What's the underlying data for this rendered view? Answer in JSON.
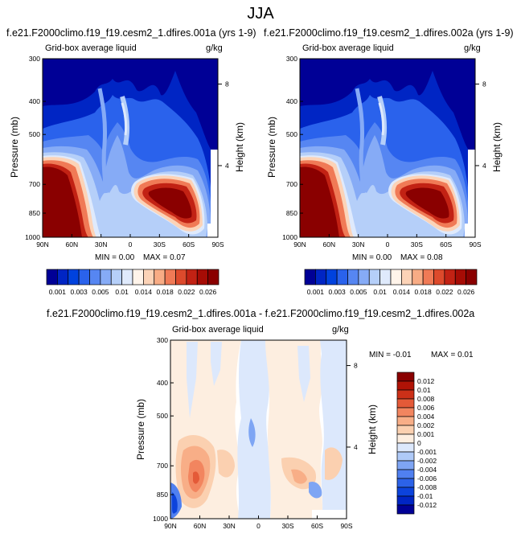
{
  "figure": {
    "title": "JJA"
  },
  "colors": {
    "levels_abs": [
      "#000096",
      "#0025c4",
      "#0042de",
      "#2a62ec",
      "#5686f2",
      "#86abf6",
      "#b5cff9",
      "#dfeafc",
      "#fff4ea",
      "#fcd3b7",
      "#f8ac85",
      "#f07a56",
      "#dd4a2c",
      "#c22214",
      "#a60c05",
      "#8a0000"
    ],
    "levels_diff": [
      "#000096",
      "#0025c4",
      "#0c43dc",
      "#2c62e8",
      "#5080f0",
      "#7ea5f4",
      "#afcaf8",
      "#dce8fc",
      "#fdeee0",
      "#fbd0b0",
      "#f8ae87",
      "#f2855f",
      "#e45a38",
      "#cc3018",
      "#b01306",
      "#8a0000"
    ]
  },
  "chart_data": [
    {
      "id": "panel-1",
      "type": "heatmap",
      "title": "f.e21.F2000climo.f19_f19.cesm2_1.dfires.001a (yrs 1-9)",
      "variable": "Grid-box average liquid",
      "units": "g/kg",
      "xlabel": "",
      "ylabel": "Pressure (mb)",
      "y2label": "Height (km)",
      "x_ticks": [
        "90N",
        "60N",
        "30N",
        "0",
        "30S",
        "60S",
        "90S"
      ],
      "x_values": [
        90,
        60,
        30,
        0,
        -30,
        -60,
        -90
      ],
      "y_ticks": [
        "300",
        "400",
        "500",
        "700",
        "850",
        "1000"
      ],
      "y_values": [
        300,
        400,
        500,
        700,
        850,
        1000
      ],
      "y2_ticks": [
        "8",
        "4"
      ],
      "min_label": "MIN =",
      "min": "0.00",
      "max_label": "MAX =",
      "max": "0.07",
      "colorbar_labels": [
        "0.001",
        "0.003",
        "0.005",
        "0.01",
        "0.014",
        "0.018",
        "0.022",
        "0.026"
      ]
    },
    {
      "id": "panel-2",
      "type": "heatmap",
      "title": "f.e21.F2000climo.f19_f19.cesm2_1.dfires.002a (yrs 1-9)",
      "variable": "Grid-box average liquid",
      "units": "g/kg",
      "xlabel": "",
      "ylabel": "Pressure (mb)",
      "y2label": "Height (km)",
      "x_ticks": [
        "90N",
        "60N",
        "30N",
        "0",
        "30S",
        "60S",
        "90S"
      ],
      "x_values": [
        90,
        60,
        30,
        0,
        -30,
        -60,
        -90
      ],
      "y_ticks": [
        "300",
        "400",
        "500",
        "700",
        "850",
        "1000"
      ],
      "y_values": [
        300,
        400,
        500,
        700,
        850,
        1000
      ],
      "y2_ticks": [
        "8",
        "4"
      ],
      "min_label": "MIN =",
      "min": "0.00",
      "max_label": "MAX =",
      "max": "0.08",
      "colorbar_labels": [
        "0.001",
        "0.003",
        "0.005",
        "0.01",
        "0.014",
        "0.018",
        "0.022",
        "0.026"
      ]
    },
    {
      "id": "panel-diff",
      "type": "heatmap",
      "title": "f.e21.F2000climo.f19_f19.cesm2_1.dfires.001a - f.e21.F2000climo.f19_f19.cesm2_1.dfires.002a",
      "variable": "Grid-box average liquid",
      "units": "g/kg",
      "xlabel": "",
      "ylabel": "Pressure (mb)",
      "y2label": "Height (km)",
      "x_ticks": [
        "90N",
        "60N",
        "30N",
        "0",
        "30S",
        "60S",
        "90S"
      ],
      "x_values": [
        90,
        60,
        30,
        0,
        -30,
        -60,
        -90
      ],
      "y_ticks": [
        "300",
        "400",
        "500",
        "700",
        "850",
        "1000"
      ],
      "y_values": [
        300,
        400,
        500,
        700,
        850,
        1000
      ],
      "y2_ticks": [
        "8",
        "4"
      ],
      "min_label": "MIN =",
      "min": "-0.01",
      "max_label": "MAX =",
      "max": "0.01",
      "colorbar_labels": [
        "0.012",
        "0.01",
        "0.008",
        "0.006",
        "0.004",
        "0.002",
        "0.001",
        "0",
        "-0.001",
        "-0.002",
        "-0.004",
        "-0.006",
        "-0.008",
        "-0.01",
        "-0.012"
      ]
    }
  ]
}
